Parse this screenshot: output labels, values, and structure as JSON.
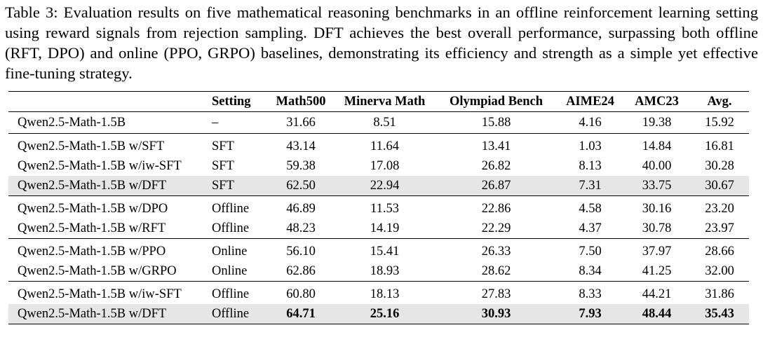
{
  "caption": "Table 3: Evaluation results on five mathematical reasoning benchmarks in an offline reinforcement learning setting using reward signals from rejection sampling. DFT achieves the best overall performance, surpassing both offline (RFT, DPO) and online (PPO, GRPO) baselines, demonstrating its efficiency and strength as a simple yet effective fine-tuning strategy.",
  "table": {
    "headers": [
      "",
      "Setting",
      "Math500",
      "Minerva Math",
      "Olympiad Bench",
      "AIME24",
      "AMC23",
      "Avg."
    ],
    "rows": [
      [
        "Qwen2.5-Math-1.5B",
        "–",
        "31.66",
        "8.51",
        "15.88",
        "4.16",
        "19.38",
        "15.92"
      ],
      [
        "Qwen2.5-Math-1.5B w/SFT",
        "SFT",
        "43.14",
        "11.64",
        "13.41",
        "1.03",
        "14.84",
        "16.81"
      ],
      [
        "Qwen2.5-Math-1.5B w/iw-SFT",
        "SFT",
        "59.38",
        "17.08",
        "26.82",
        "8.13",
        "40.00",
        "30.28"
      ],
      [
        "Qwen2.5-Math-1.5B w/DFT",
        "SFT",
        "62.50",
        "22.94",
        "26.87",
        "7.31",
        "33.75",
        "30.67"
      ],
      [
        "Qwen2.5-Math-1.5B w/DPO",
        "Offline",
        "46.89",
        "11.53",
        "22.86",
        "4.58",
        "30.16",
        "23.20"
      ],
      [
        "Qwen2.5-Math-1.5B w/RFT",
        "Offline",
        "48.23",
        "14.19",
        "22.29",
        "4.37",
        "30.78",
        "23.97"
      ],
      [
        "Qwen2.5-Math-1.5B w/PPO",
        "Online",
        "56.10",
        "15.41",
        "26.33",
        "7.50",
        "37.97",
        "28.66"
      ],
      [
        "Qwen2.5-Math-1.5B w/GRPO",
        "Online",
        "62.86",
        "18.93",
        "28.62",
        "8.34",
        "41.25",
        "32.00"
      ],
      [
        "Qwen2.5-Math-1.5B w/iw-SFT",
        "Offline",
        "60.80",
        "18.13",
        "27.83",
        "8.33",
        "44.21",
        "31.86"
      ],
      [
        "Qwen2.5-Math-1.5B w/DFT",
        "Offline",
        "64.71",
        "25.16",
        "30.93",
        "7.93",
        "48.44",
        "35.43"
      ]
    ]
  }
}
